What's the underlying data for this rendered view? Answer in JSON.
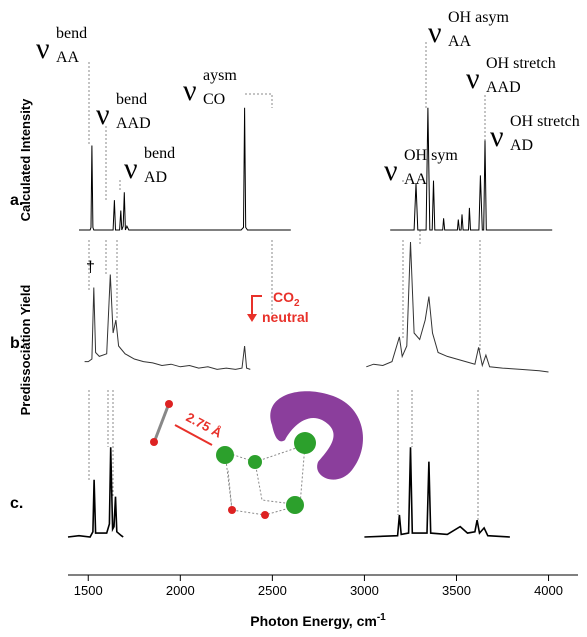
{
  "chart_data": {
    "type": "line",
    "y_labels": [
      "Calculated Intensity",
      "Predissociation Yield"
    ],
    "x_label": "Photon Energy, cm",
    "x_label_sup": "-1",
    "xlim": [
      1390,
      4160
    ],
    "xticks": [
      1500,
      2000,
      2500,
      3000,
      3500,
      4000
    ],
    "series": [
      {
        "name": "a.",
        "color": "#000000",
        "x": [
          1450,
          1510,
          1515,
          1520,
          1525,
          1530,
          1635,
          1642,
          1648,
          1670,
          1677,
          1682,
          1690,
          1696,
          1702,
          1710,
          1720,
          2330,
          2343,
          2349,
          2355,
          2365,
          2600,
          null,
          3140,
          3270,
          3280,
          3290,
          3335,
          3345,
          3355,
          3368,
          3375,
          3382,
          3425,
          3430,
          3436,
          3505,
          3510,
          3516,
          3525,
          3530,
          3536,
          3565,
          3570,
          3576,
          3622,
          3630,
          3640,
          3648,
          3655,
          3662,
          4020
        ],
        "values": [
          0,
          0,
          2,
          65,
          2,
          0,
          0,
          23,
          0,
          0,
          15,
          0,
          3,
          29,
          0,
          3,
          0,
          0,
          2,
          94,
          2,
          0,
          0,
          null,
          0,
          0,
          36,
          0,
          0,
          94,
          0,
          0,
          38,
          0,
          0,
          9,
          0,
          0,
          8,
          0,
          0,
          12,
          0,
          0,
          17,
          0,
          0,
          42,
          0,
          0,
          69,
          0,
          0
        ]
      },
      {
        "name": "b.",
        "color": "#333333",
        "x": [
          1480,
          1500,
          1520,
          1530,
          1540,
          1560,
          1600,
          1620,
          1635,
          1650,
          1665,
          1700,
          1750,
          1800,
          1850,
          1900,
          1950,
          2000,
          2050,
          2100,
          2150,
          2200,
          2250,
          2300,
          2335,
          2349,
          2360,
          2380,
          null,
          3010,
          3050,
          3100,
          3150,
          3190,
          3205,
          3230,
          3250,
          3270,
          3300,
          3330,
          3350,
          3370,
          3400,
          3450,
          3500,
          3550,
          3600,
          3620,
          3640,
          3660,
          3680,
          3750,
          3850,
          3950,
          4000
        ],
        "values": [
          8,
          8,
          10,
          65,
          15,
          12,
          14,
          75,
          30,
          40,
          20,
          14,
          10,
          8,
          7,
          5,
          6,
          4,
          5,
          3,
          4,
          2,
          3,
          2,
          3,
          20,
          3,
          2,
          null,
          4,
          6,
          5,
          8,
          27,
          12,
          20,
          100,
          30,
          25,
          40,
          58,
          30,
          15,
          12,
          10,
          8,
          6,
          19,
          5,
          13,
          4,
          3,
          2,
          1,
          0
        ]
      },
      {
        "name": "c.",
        "color": "#000000",
        "x": [
          1390,
          1450,
          1510,
          1525,
          1532,
          1540,
          1600,
          1615,
          1622,
          1632,
          1640,
          1648,
          1655,
          1680,
          1690,
          null,
          3000,
          3180,
          3190,
          3200,
          3240,
          3250,
          3260,
          3340,
          3350,
          3360,
          3450,
          3520,
          3560,
          3600,
          3612,
          3625,
          3650,
          3670,
          3790
        ],
        "values": [
          0,
          1,
          0,
          4,
          44,
          3,
          3,
          10,
          69,
          6,
          8,
          31,
          4,
          1,
          0,
          null,
          0,
          1,
          17,
          2,
          3,
          69,
          3,
          3,
          58,
          3,
          2,
          8,
          3,
          4,
          13,
          3,
          7,
          1,
          0
        ]
      }
    ],
    "annotations": [
      {
        "symbol": "ν",
        "sup": "bend",
        "sub": "AA"
      },
      {
        "symbol": "ν",
        "sup": "bend",
        "sub": "AAD"
      },
      {
        "symbol": "ν",
        "sup": "bend",
        "sub": "AD"
      },
      {
        "symbol": "ν",
        "sup": "aysm",
        "sub": "CO"
      },
      {
        "symbol": "ν",
        "sup": "OH asym",
        "sub": "AA"
      },
      {
        "symbol": "ν",
        "sup": "OH stretch",
        "sub": "AAD"
      },
      {
        "symbol": "ν",
        "sup": "OH sym",
        "sub": "AA"
      },
      {
        "symbol": "ν",
        "sup": "OH stretch",
        "sub": "AD"
      }
    ],
    "dagger": "†",
    "co2_label": {
      "main": "CO",
      "sub": "2",
      "line2": "neutral"
    },
    "distance_label": "2.75 Å"
  }
}
